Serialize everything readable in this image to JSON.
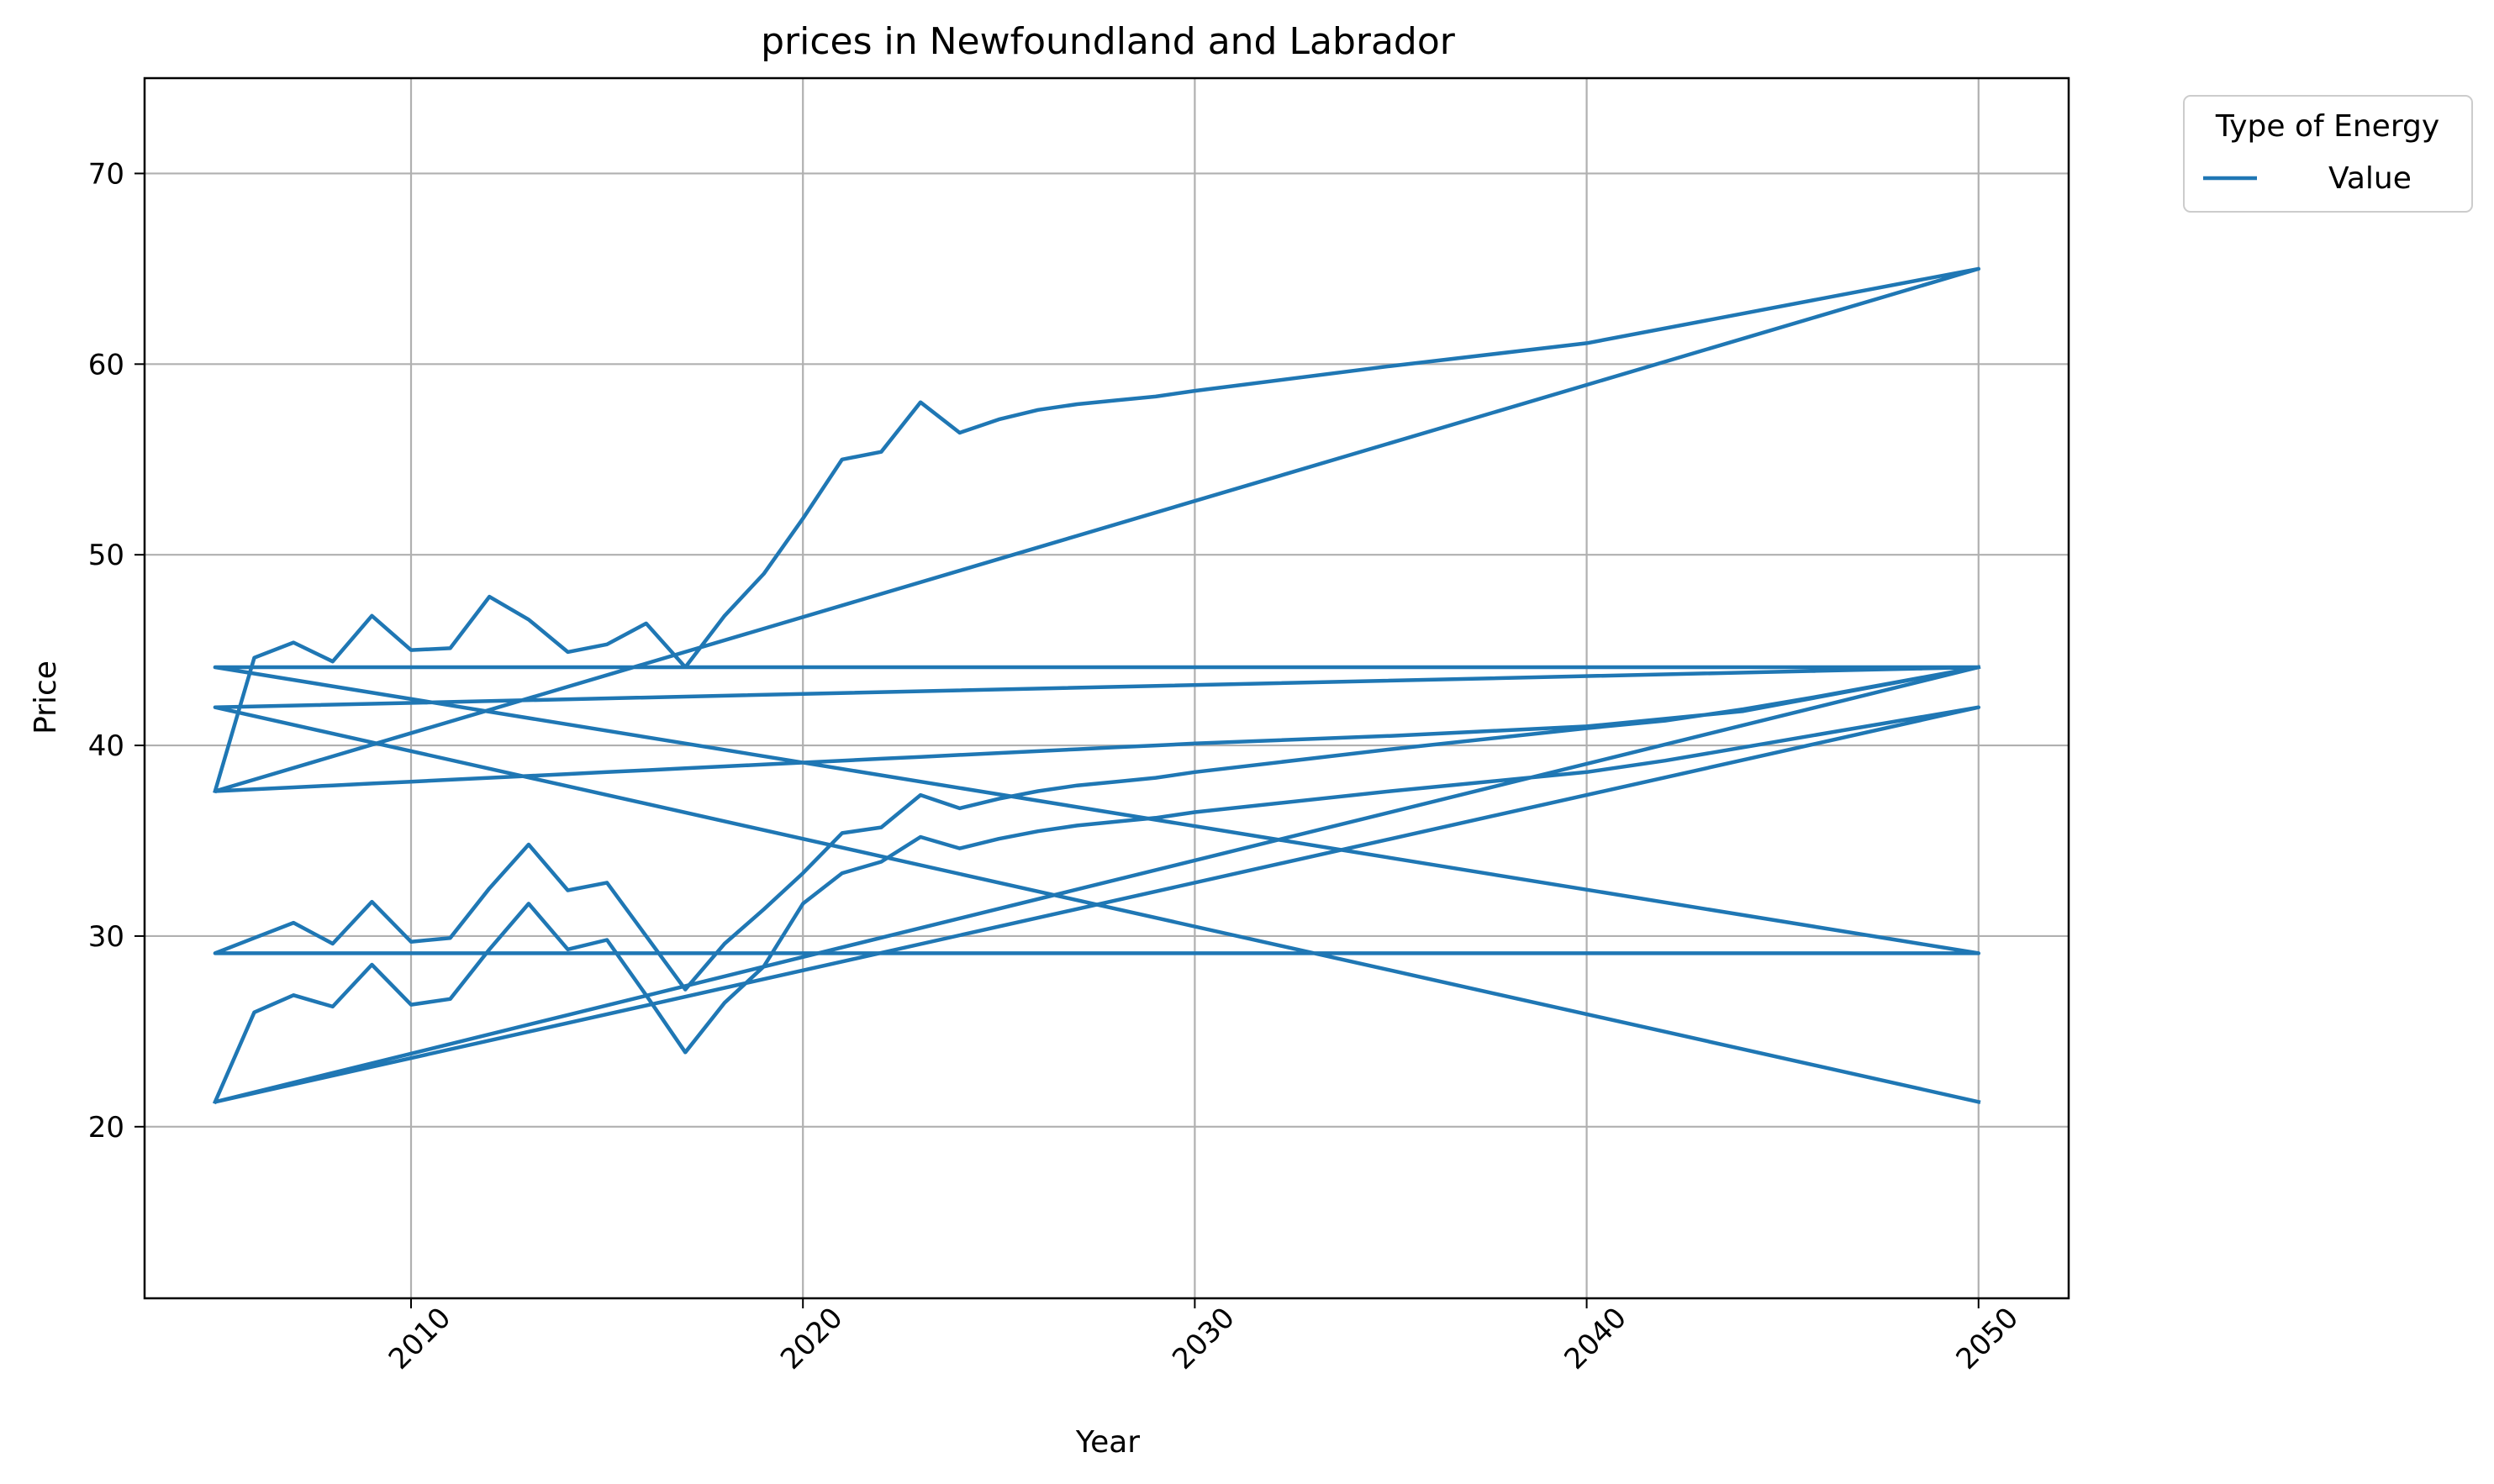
{
  "chart_data": {
    "type": "line",
    "title": "prices in Newfoundland and Labrador",
    "xlabel": "Year",
    "ylabel": "Price",
    "xlim": [
      2003.2,
      2052.3
    ],
    "ylim": [
      11,
      75
    ],
    "xticks": [
      2010,
      2020,
      2030,
      2040,
      2050
    ],
    "yticks": [
      20,
      30,
      40,
      50,
      60,
      70
    ],
    "grid": true,
    "color": "#1f77b4",
    "legend": {
      "title": "Type of Energy",
      "entries": [
        "Value"
      ],
      "position": "outside-top-right"
    },
    "series": [
      {
        "name": "Value",
        "x": [
          2005,
          2006,
          2007,
          2008,
          2009,
          2010,
          2011,
          2012,
          2013,
          2014,
          2015,
          2016,
          2017,
          2018,
          2019,
          2020,
          2021,
          2022,
          2023,
          2024,
          2025,
          2026,
          2027,
          2028,
          2029,
          2030,
          2035,
          2040,
          2050,
          2005,
          2006,
          2007,
          2008,
          2009,
          2010,
          2011,
          2012,
          2013,
          2014,
          2015,
          2016,
          2017,
          2018,
          2019,
          2020,
          2021,
          2022,
          2023,
          2024,
          2025,
          2026,
          2027,
          2028,
          2029,
          2030,
          2035,
          2040,
          2044,
          2050,
          2005,
          2050,
          2005,
          2006,
          2007,
          2008,
          2009,
          2010,
          2011,
          2012,
          2013,
          2014,
          2015,
          2016,
          2017,
          2018,
          2019,
          2020,
          2021,
          2022,
          2023,
          2024,
          2025,
          2026,
          2027,
          2028,
          2029,
          2030,
          2035,
          2040,
          2042,
          2044,
          2046,
          2050,
          2005,
          2050
        ],
        "y": [
          37.6,
          44.6,
          45.4,
          44.4,
          46.8,
          45.0,
          45.1,
          47.8,
          46.6,
          44.9,
          45.3,
          46.4,
          44.1,
          46.8,
          49.0,
          51.9,
          55.0,
          55.4,
          58.0,
          56.4,
          57.1,
          57.6,
          57.9,
          58.1,
          58.3,
          58.6,
          59.9,
          61.1,
          65.0,
          37.6,
          37.7,
          37.8,
          37.9,
          38.0,
          38.1,
          38.2,
          38.3,
          38.4,
          38.5,
          38.6,
          38.7,
          38.8,
          38.9,
          39.0,
          39.1,
          39.2,
          39.3,
          39.4,
          39.5,
          39.6,
          39.7,
          39.8,
          39.9,
          40.0,
          40.1,
          40.5,
          41.0,
          41.8,
          44.1,
          44.1,
          29.1,
          29.1,
          29.9,
          30.7,
          29.6,
          31.8,
          29.7,
          29.9,
          32.5,
          34.8,
          32.4,
          32.8,
          30.0,
          27.2,
          29.6,
          31.4,
          33.3,
          35.4,
          35.7,
          37.4,
          36.7,
          37.2,
          37.6,
          37.9,
          38.1,
          38.3,
          38.6,
          39.8,
          40.9,
          41.3,
          41.9,
          42.6,
          44.1,
          42.0,
          21.3
        ]
      },
      {
        "name": "",
        "x": [
          2005,
          2006,
          2007,
          2008,
          2009,
          2010,
          2011,
          2012,
          2013,
          2014,
          2015,
          2016,
          2017,
          2018,
          2019,
          2020,
          2021,
          2022,
          2023,
          2024,
          2025,
          2026,
          2027,
          2028,
          2029,
          2030,
          2035,
          2040,
          2042,
          2044,
          2046,
          2050,
          2005,
          2050
        ],
        "y": [
          21.3,
          26.0,
          26.9,
          26.3,
          28.5,
          26.4,
          26.7,
          29.3,
          31.7,
          29.3,
          29.8,
          26.9,
          23.9,
          26.5,
          28.4,
          31.7,
          33.3,
          33.9,
          35.2,
          34.6,
          35.1,
          35.5,
          35.8,
          36.0,
          36.2,
          36.5,
          37.6,
          38.6,
          39.2,
          39.9,
          40.6,
          42.0,
          21.3,
          44.1
        ]
      }
    ]
  }
}
